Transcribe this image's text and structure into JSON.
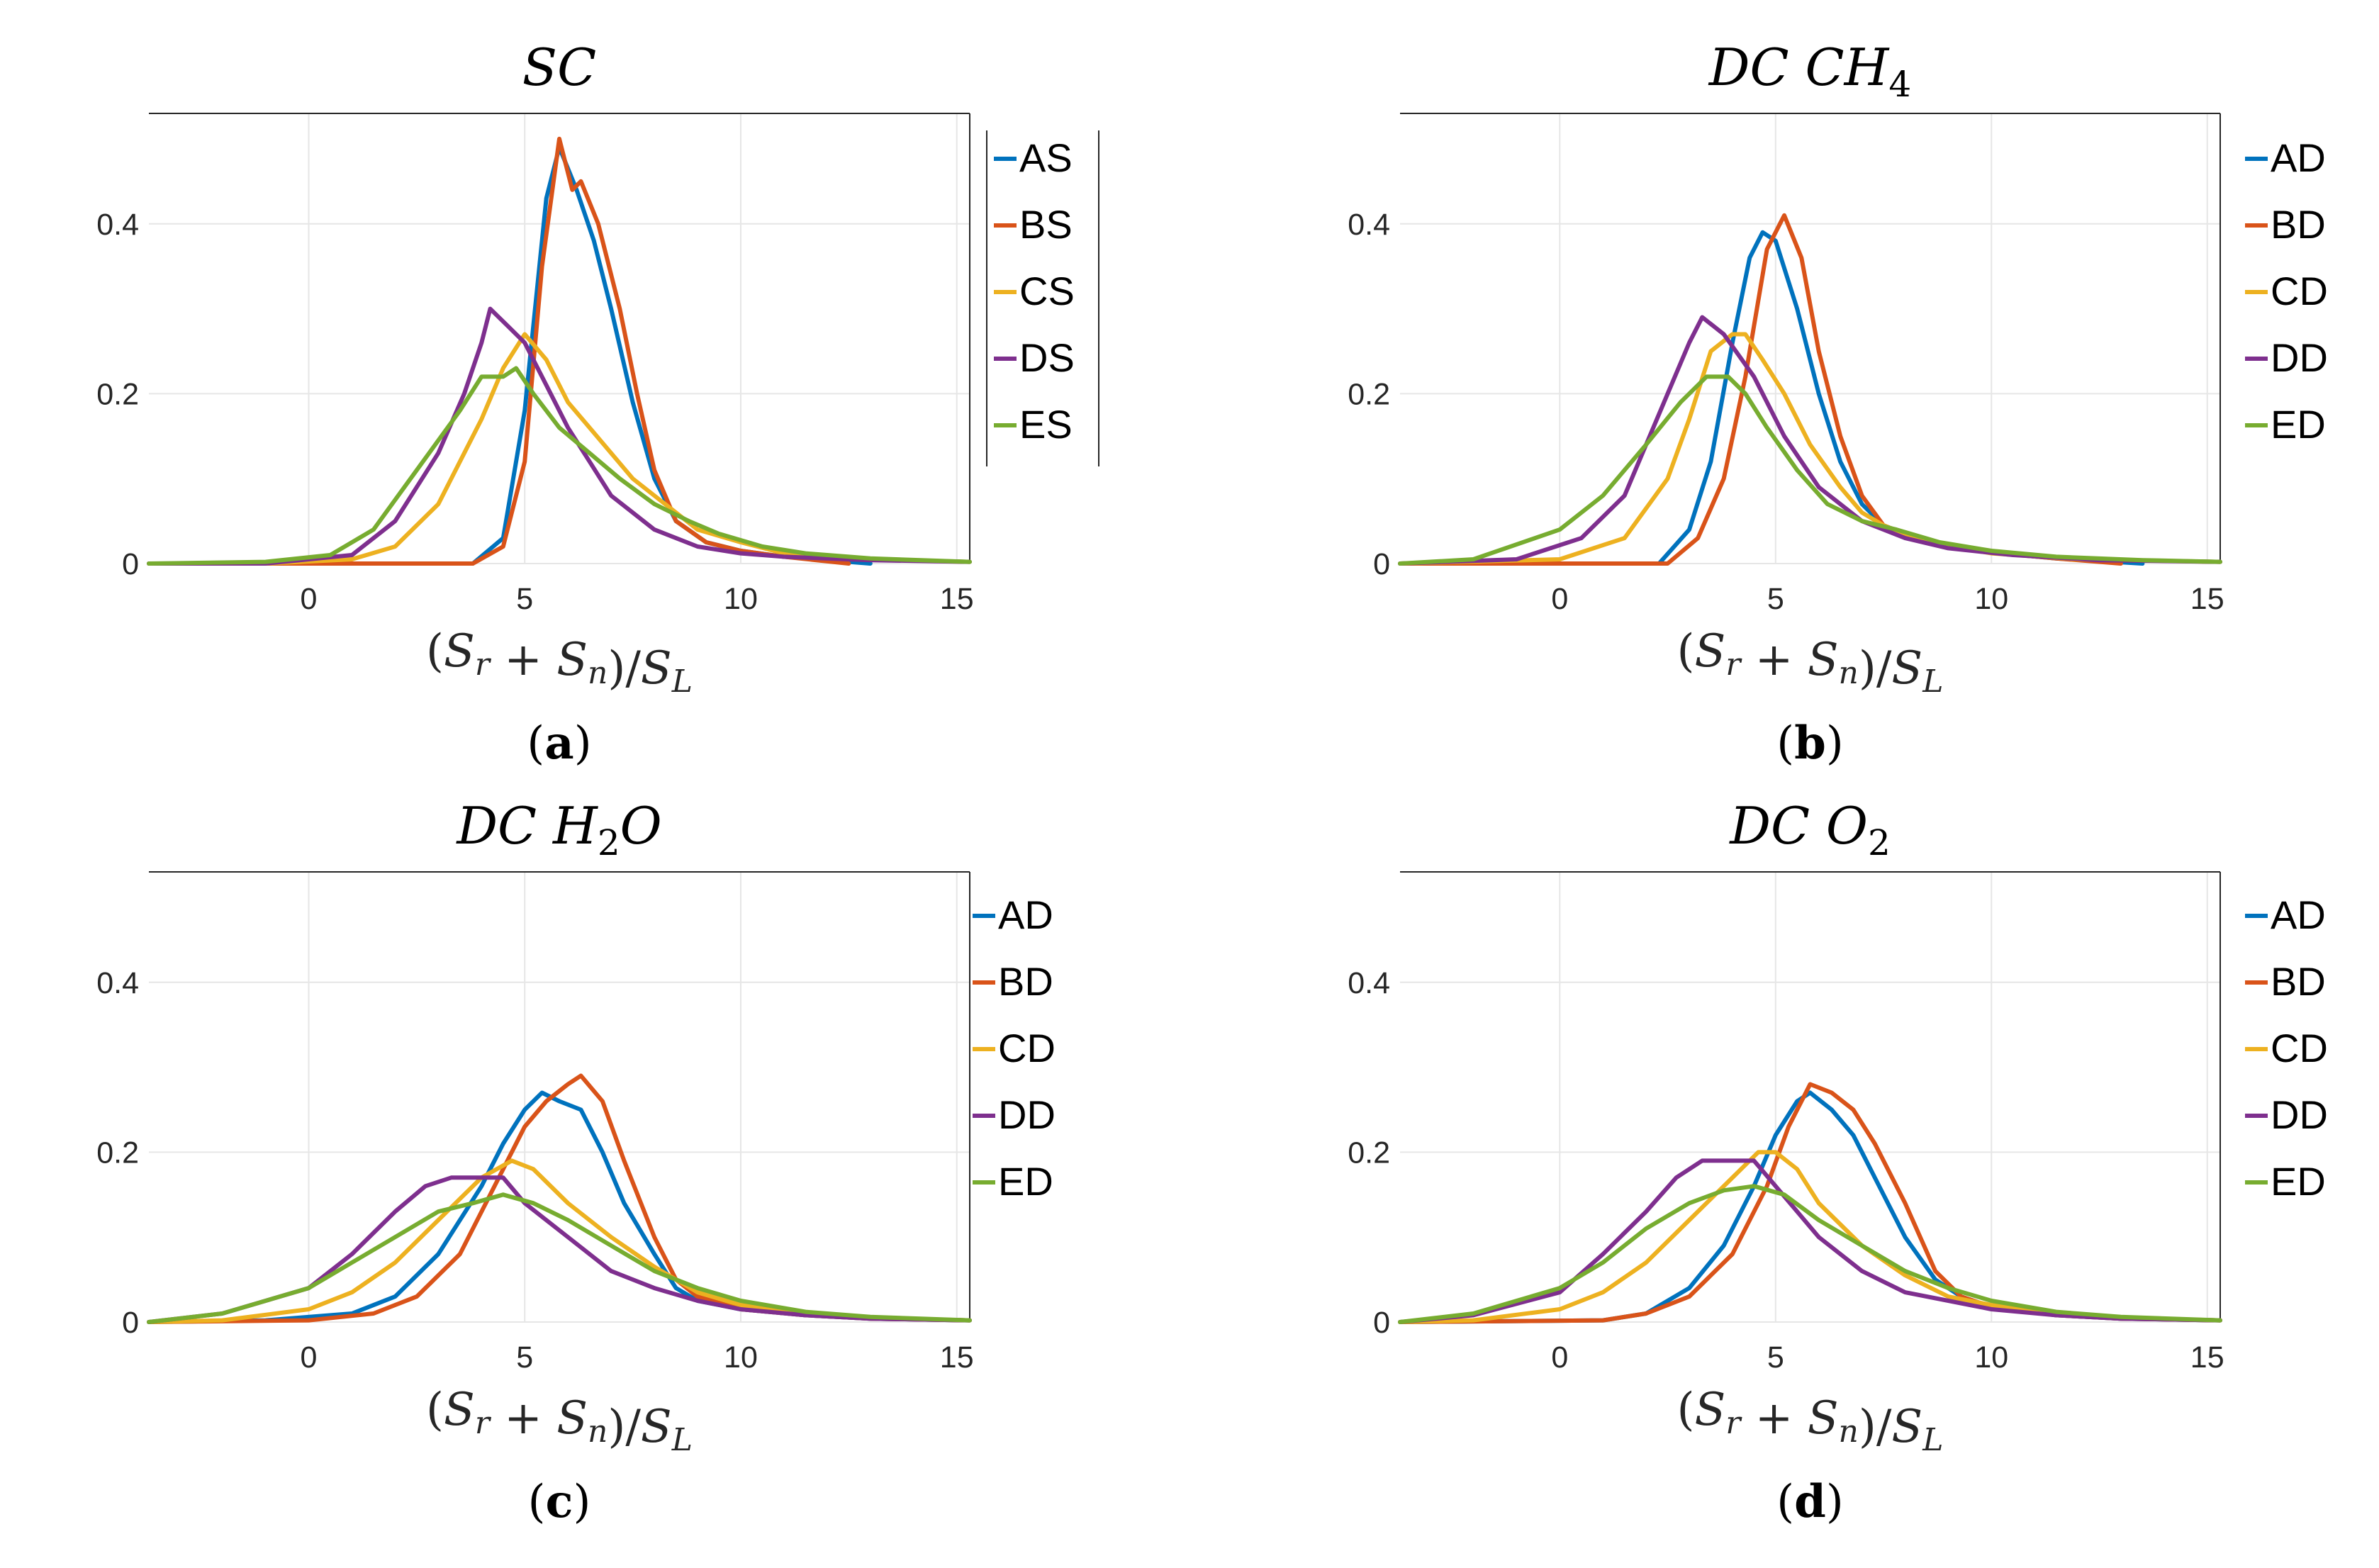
{
  "colors": {
    "A": "#0072BD",
    "B": "#D95319",
    "C": "#EDB120",
    "D": "#7E2F8E",
    "E": "#77AC30"
  },
  "chart_data": [
    {
      "id": "a",
      "type": "line",
      "title": "SC",
      "title_sub": "",
      "caption": "a",
      "xlabel": "(S_r + S_n)/S_L",
      "xlim": [
        -3.7,
        15.3
      ],
      "ylim": [
        0,
        0.53
      ],
      "xticks": [
        "0",
        "5",
        "10",
        "15"
      ],
      "yticks": [
        "0",
        "0.2",
        "0.4"
      ],
      "grid": true,
      "legend_position": "right",
      "series": [
        {
          "name": "AS",
          "color_key": "A",
          "x": [
            -4,
            3.8,
            4.5,
            5.0,
            5.5,
            5.8,
            6.2,
            6.6,
            7.0,
            7.5,
            8.0,
            8.5,
            9.2,
            10.0,
            11.0,
            13.0
          ],
          "y": [
            0,
            0,
            0.03,
            0.18,
            0.43,
            0.49,
            0.44,
            0.38,
            0.3,
            0.19,
            0.1,
            0.05,
            0.025,
            0.015,
            0.008,
            0
          ]
        },
        {
          "name": "BS",
          "color_key": "B",
          "x": [
            -4,
            3.8,
            4.5,
            5.0,
            5.4,
            5.8,
            6.1,
            6.3,
            6.7,
            7.2,
            7.6,
            8.0,
            8.5,
            9.2,
            10.0,
            11.0,
            12.5
          ],
          "y": [
            0,
            0,
            0.02,
            0.12,
            0.35,
            0.5,
            0.44,
            0.45,
            0.4,
            0.3,
            0.2,
            0.11,
            0.05,
            0.025,
            0.015,
            0.008,
            0
          ]
        },
        {
          "name": "CS",
          "color_key": "C",
          "x": [
            -4,
            -1.0,
            1.0,
            2.0,
            3.0,
            4.0,
            4.5,
            5.0,
            5.5,
            6.0,
            6.5,
            7.0,
            7.5,
            8.0,
            8.5,
            9.0,
            10.0,
            11.0,
            13.0,
            15.3
          ],
          "y": [
            0,
            0,
            0.005,
            0.02,
            0.07,
            0.17,
            0.23,
            0.27,
            0.24,
            0.19,
            0.16,
            0.13,
            0.1,
            0.08,
            0.06,
            0.04,
            0.025,
            0.012,
            0.005,
            0.002
          ]
        },
        {
          "name": "DS",
          "color_key": "D",
          "x": [
            -4,
            -1.0,
            1.0,
            2.0,
            3.0,
            3.6,
            4.0,
            4.2,
            4.6,
            5.0,
            5.5,
            6.0,
            6.5,
            7.0,
            7.5,
            8.0,
            9.0,
            10.0,
            11.0,
            13.0,
            15.3
          ],
          "y": [
            0,
            0,
            0.01,
            0.05,
            0.13,
            0.2,
            0.26,
            0.3,
            0.28,
            0.26,
            0.21,
            0.16,
            0.12,
            0.08,
            0.06,
            0.04,
            0.02,
            0.012,
            0.008,
            0.004,
            0.002
          ]
        },
        {
          "name": "ES",
          "color_key": "E",
          "x": [
            -4,
            -1.0,
            0.5,
            1.5,
            2.5,
            3.5,
            4.0,
            4.5,
            4.8,
            5.2,
            5.8,
            6.5,
            7.2,
            8.0,
            8.8,
            9.5,
            10.5,
            11.5,
            13.0,
            15.3
          ],
          "y": [
            0,
            0.002,
            0.01,
            0.04,
            0.11,
            0.18,
            0.22,
            0.22,
            0.23,
            0.2,
            0.16,
            0.13,
            0.1,
            0.07,
            0.05,
            0.035,
            0.02,
            0.012,
            0.006,
            0.002
          ]
        }
      ]
    },
    {
      "id": "b",
      "type": "line",
      "title": "DC CH",
      "title_sub": "4",
      "caption": "b",
      "xlabel": "(S_r + S_n)/S_L",
      "xlim": [
        -3.7,
        15.3
      ],
      "ylim": [
        0,
        0.53
      ],
      "xticks": [
        "0",
        "5",
        "10",
        "15"
      ],
      "yticks": [
        "0",
        "0.2",
        "0.4"
      ],
      "grid": true,
      "legend_position": "right",
      "series": [
        {
          "name": "AD",
          "color_key": "A",
          "x": [
            -4,
            2.3,
            3.0,
            3.5,
            4.0,
            4.4,
            4.7,
            5.0,
            5.5,
            6.0,
            6.5,
            7.0,
            7.5,
            8.5,
            10.0,
            11.5,
            13.5
          ],
          "y": [
            0,
            0,
            0.04,
            0.12,
            0.26,
            0.36,
            0.39,
            0.38,
            0.3,
            0.2,
            0.12,
            0.07,
            0.045,
            0.025,
            0.013,
            0.006,
            0
          ]
        },
        {
          "name": "BD",
          "color_key": "B",
          "x": [
            -4,
            2.5,
            3.2,
            3.8,
            4.3,
            4.8,
            5.2,
            5.6,
            6.0,
            6.5,
            7.0,
            7.5,
            8.5,
            10.0,
            11.5,
            13.0
          ],
          "y": [
            0,
            0,
            0.03,
            0.1,
            0.22,
            0.37,
            0.41,
            0.36,
            0.25,
            0.15,
            0.08,
            0.045,
            0.025,
            0.013,
            0.006,
            0
          ]
        },
        {
          "name": "CD",
          "color_key": "C",
          "x": [
            -4,
            0.0,
            1.5,
            2.5,
            3.0,
            3.5,
            4.0,
            4.3,
            4.7,
            5.2,
            5.8,
            6.5,
            7.0,
            7.5,
            8.5,
            10.0,
            12.0,
            15.3
          ],
          "y": [
            0,
            0.005,
            0.03,
            0.1,
            0.17,
            0.25,
            0.27,
            0.27,
            0.24,
            0.2,
            0.14,
            0.09,
            0.06,
            0.045,
            0.025,
            0.012,
            0.005,
            0.002
          ]
        },
        {
          "name": "DD",
          "color_key": "D",
          "x": [
            -4,
            -1.0,
            0.5,
            1.5,
            2.5,
            3.0,
            3.3,
            3.8,
            4.5,
            5.2,
            6.0,
            7.0,
            8.0,
            9.0,
            10.5,
            12.5,
            15.3
          ],
          "y": [
            0,
            0.005,
            0.03,
            0.08,
            0.2,
            0.26,
            0.29,
            0.27,
            0.22,
            0.15,
            0.09,
            0.05,
            0.03,
            0.018,
            0.01,
            0.004,
            0.002
          ]
        },
        {
          "name": "ED",
          "color_key": "E",
          "x": [
            -4,
            -2.0,
            0.0,
            1.0,
            2.0,
            2.8,
            3.4,
            3.9,
            4.3,
            4.8,
            5.5,
            6.2,
            7.0,
            7.8,
            8.8,
            10.0,
            11.5,
            13.5,
            15.3
          ],
          "y": [
            0,
            0.005,
            0.04,
            0.08,
            0.14,
            0.19,
            0.22,
            0.22,
            0.2,
            0.16,
            0.11,
            0.07,
            0.05,
            0.04,
            0.025,
            0.015,
            0.008,
            0.004,
            0.002
          ]
        }
      ]
    },
    {
      "id": "c",
      "type": "line",
      "title": "DC H",
      "title_sub": "2",
      "title_tail": "O",
      "caption": "c",
      "xlabel": "(S_r + S_n)/S_L",
      "xlim": [
        -3.7,
        15.3
      ],
      "ylim": [
        0,
        0.53
      ],
      "xticks": [
        "0",
        "5",
        "10",
        "15"
      ],
      "yticks": [
        "0",
        "0.2",
        "0.4"
      ],
      "grid": true,
      "legend_position": "right",
      "series": [
        {
          "name": "AD",
          "color_key": "A",
          "x": [
            -4,
            -1.0,
            1.0,
            2.0,
            3.0,
            4.0,
            4.5,
            5.0,
            5.4,
            5.8,
            6.3,
            6.8,
            7.3,
            8.0,
            8.5,
            9.0,
            10.0,
            11.5,
            13.0,
            15.3
          ],
          "y": [
            0,
            0.002,
            0.01,
            0.03,
            0.08,
            0.16,
            0.21,
            0.25,
            0.27,
            0.26,
            0.25,
            0.2,
            0.14,
            0.08,
            0.04,
            0.025,
            0.015,
            0.008,
            0.004,
            0.002
          ]
        },
        {
          "name": "BD",
          "color_key": "B",
          "x": [
            -4,
            0.0,
            1.5,
            2.5,
            3.5,
            4.3,
            5.0,
            5.5,
            6.0,
            6.3,
            6.8,
            7.3,
            8.0,
            8.5,
            9.0,
            10.0,
            11.5,
            13.0,
            15.3
          ],
          "y": [
            0,
            0.002,
            0.01,
            0.03,
            0.08,
            0.16,
            0.23,
            0.26,
            0.28,
            0.29,
            0.26,
            0.19,
            0.1,
            0.05,
            0.03,
            0.015,
            0.008,
            0.004,
            0.002
          ]
        },
        {
          "name": "CD",
          "color_key": "C",
          "x": [
            -4,
            -2.0,
            0.0,
            1.0,
            2.0,
            3.0,
            4.0,
            4.7,
            5.2,
            6.0,
            7.0,
            8.0,
            9.0,
            10.0,
            11.5,
            13.0,
            15.3
          ],
          "y": [
            0,
            0.002,
            0.015,
            0.035,
            0.07,
            0.12,
            0.17,
            0.19,
            0.18,
            0.14,
            0.1,
            0.065,
            0.035,
            0.02,
            0.01,
            0.005,
            0.002
          ]
        },
        {
          "name": "DD",
          "color_key": "D",
          "x": [
            -4,
            -2.0,
            0.0,
            1.0,
            2.0,
            2.7,
            3.3,
            4.0,
            4.5,
            5.0,
            6.0,
            7.0,
            8.0,
            9.0,
            10.0,
            11.5,
            13.0,
            15.3
          ],
          "y": [
            0,
            0.01,
            0.04,
            0.08,
            0.13,
            0.16,
            0.17,
            0.17,
            0.17,
            0.14,
            0.1,
            0.06,
            0.04,
            0.025,
            0.015,
            0.008,
            0.004,
            0.002
          ]
        },
        {
          "name": "ED",
          "color_key": "E",
          "x": [
            -4,
            -2.0,
            0.0,
            1.0,
            2.0,
            3.0,
            3.8,
            4.5,
            5.2,
            6.0,
            7.0,
            8.0,
            9.0,
            10.0,
            11.5,
            13.0,
            15.3
          ],
          "y": [
            0,
            0.01,
            0.04,
            0.07,
            0.1,
            0.13,
            0.14,
            0.15,
            0.14,
            0.12,
            0.09,
            0.06,
            0.04,
            0.025,
            0.012,
            0.006,
            0.002
          ]
        }
      ]
    },
    {
      "id": "d",
      "type": "line",
      "title": "DC O",
      "title_sub": "2",
      "caption": "d",
      "xlabel": "(S_r + S_n)/S_L",
      "xlim": [
        -3.7,
        15.3
      ],
      "ylim": [
        0,
        0.53
      ],
      "xticks": [
        "0",
        "5",
        "10",
        "15"
      ],
      "yticks": [
        "0",
        "0.2",
        "0.4"
      ],
      "grid": true,
      "legend_position": "right",
      "series": [
        {
          "name": "AD",
          "color_key": "A",
          "x": [
            -4,
            1.0,
            2.0,
            3.0,
            3.8,
            4.5,
            5.0,
            5.5,
            5.8,
            6.3,
            6.8,
            7.3,
            8.0,
            8.7,
            9.3,
            10.0,
            11.5,
            13.0,
            15.3
          ],
          "y": [
            0,
            0.002,
            0.01,
            0.04,
            0.09,
            0.16,
            0.22,
            0.26,
            0.27,
            0.25,
            0.22,
            0.17,
            0.1,
            0.05,
            0.03,
            0.018,
            0.008,
            0.004,
            0.002
          ]
        },
        {
          "name": "BD",
          "color_key": "B",
          "x": [
            -4,
            1.0,
            2.0,
            3.0,
            4.0,
            4.8,
            5.3,
            5.8,
            6.3,
            6.8,
            7.3,
            8.0,
            8.7,
            9.3,
            10.0,
            11.5,
            13.0,
            15.3
          ],
          "y": [
            0,
            0.002,
            0.01,
            0.03,
            0.08,
            0.16,
            0.23,
            0.28,
            0.27,
            0.25,
            0.21,
            0.14,
            0.06,
            0.03,
            0.018,
            0.008,
            0.004,
            0.002
          ]
        },
        {
          "name": "CD",
          "color_key": "C",
          "x": [
            -4,
            -2.0,
            0.0,
            1.0,
            2.0,
            3.0,
            4.0,
            4.6,
            5.0,
            5.5,
            6.0,
            7.0,
            8.0,
            9.0,
            10.0,
            11.5,
            13.0,
            15.3
          ],
          "y": [
            0,
            0.002,
            0.015,
            0.035,
            0.07,
            0.12,
            0.17,
            0.2,
            0.2,
            0.18,
            0.14,
            0.09,
            0.055,
            0.03,
            0.02,
            0.01,
            0.005,
            0.002
          ]
        },
        {
          "name": "DD",
          "color_key": "D",
          "x": [
            -4,
            -2.0,
            0.0,
            1.0,
            2.0,
            2.7,
            3.3,
            4.0,
            4.5,
            5.0,
            6.0,
            7.0,
            8.0,
            9.0,
            10.0,
            11.5,
            13.0,
            15.3
          ],
          "y": [
            0,
            0.008,
            0.035,
            0.08,
            0.13,
            0.17,
            0.19,
            0.19,
            0.19,
            0.16,
            0.1,
            0.06,
            0.035,
            0.025,
            0.015,
            0.008,
            0.004,
            0.002
          ]
        },
        {
          "name": "ED",
          "color_key": "E",
          "x": [
            -4,
            -2.0,
            0.0,
            1.0,
            2.0,
            3.0,
            3.8,
            4.5,
            5.2,
            6.0,
            7.0,
            8.0,
            9.0,
            10.0,
            11.5,
            13.0,
            15.3
          ],
          "y": [
            0,
            0.01,
            0.04,
            0.07,
            0.11,
            0.14,
            0.155,
            0.16,
            0.15,
            0.12,
            0.09,
            0.06,
            0.04,
            0.025,
            0.012,
            0.006,
            0.002
          ]
        }
      ]
    }
  ]
}
